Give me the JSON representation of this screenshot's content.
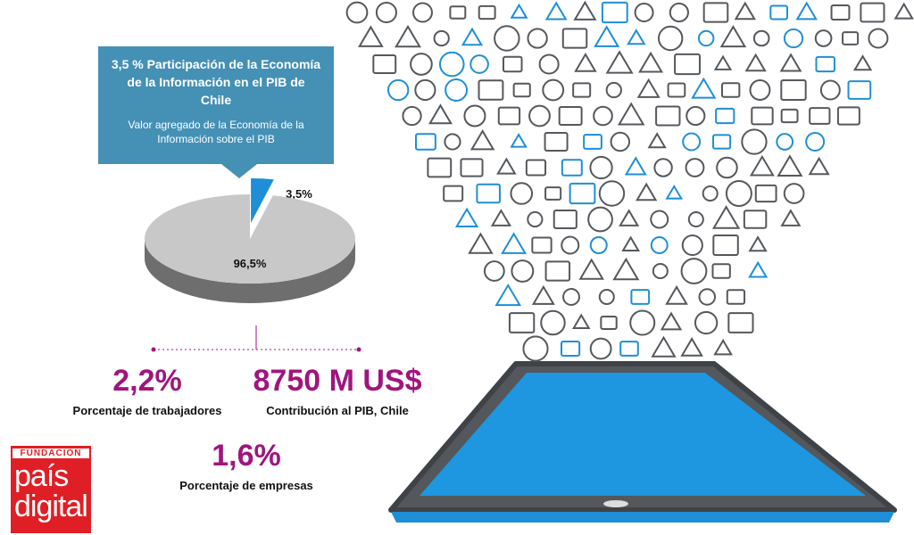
{
  "callout": {
    "title": "3,5 % Participación de la Economía de la Información en el PIB de Chile",
    "subtitle": "Valor agregado de la Economía de la Información sobre el PIB"
  },
  "pie": {
    "values": [
      3.5,
      96.5
    ],
    "value_labels": [
      "3,5%",
      "96,5%"
    ],
    "colors": [
      "#1e8fd6",
      "#c8c8c8"
    ]
  },
  "stats": [
    {
      "value": "2,2%",
      "label": "Porcentaje de trabajadores"
    },
    {
      "value": "8750 M US$",
      "label": "Contribución al PIB, Chile"
    },
    {
      "value": "1,6%",
      "label": "Porcentaje de empresas"
    }
  ],
  "logo": {
    "top": "FUNDACIÓN",
    "line1": "país",
    "line2": "digital"
  }
}
